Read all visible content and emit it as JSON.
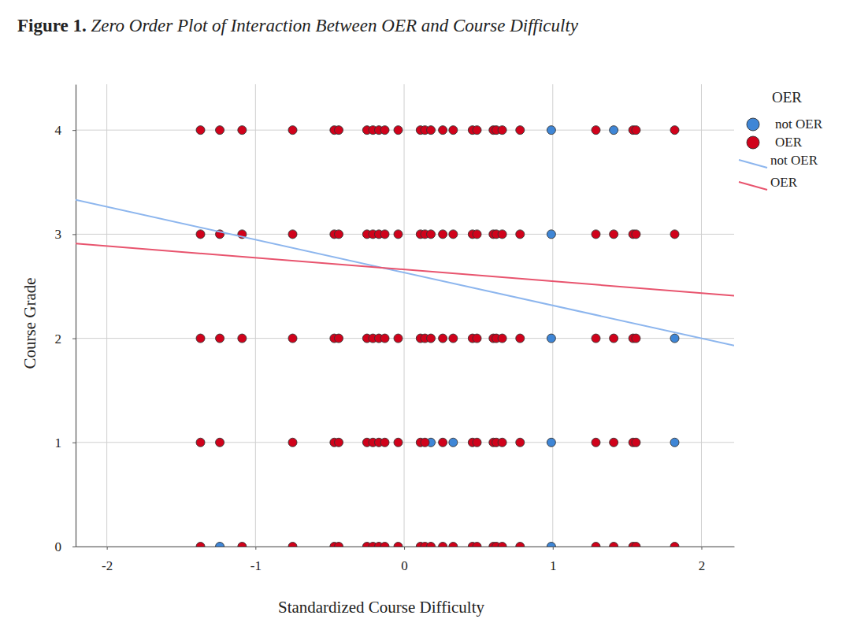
{
  "chart_data": {
    "type": "scatter",
    "title": "Figure 1. Zero Order Plot of Interaction Between OER and Course Difficulty",
    "x_label": "Standardized Course Difficulty",
    "y_label": "Course Grade",
    "legend_title": "OER",
    "legend": "right",
    "grid": true,
    "xlim": [
      -2.21,
      2.22
    ],
    "ylim": [
      0,
      4.44
    ],
    "xticks": [
      -2,
      -1,
      0,
      1,
      2
    ],
    "yticks": [
      0,
      1,
      2,
      3,
      4
    ],
    "series": [
      {
        "name": "not OER",
        "type": "scatter",
        "marker": "circle",
        "color": "#3f86d6",
        "x": [
          -1.24,
          0.99,
          0.18,
          0.33,
          0.99,
          1.82,
          0.99,
          1.82,
          0.99,
          0.99,
          1.41
        ],
        "values": [
          0,
          0,
          1,
          1,
          1,
          1,
          2,
          2,
          3,
          4,
          4
        ]
      },
      {
        "name": "OER",
        "type": "scatter",
        "marker": "circle",
        "color": "#d0021b",
        "x": [
          -1.37,
          -1.24,
          -1.09,
          -0.75,
          -0.47,
          -0.44,
          -0.25,
          -0.21,
          -0.17,
          -0.13,
          -0.04,
          0.11,
          0.14,
          0.18,
          0.26,
          0.33,
          0.46,
          0.49,
          0.6,
          0.62,
          0.66,
          0.78,
          1.29,
          1.54,
          1.56,
          1.82,
          -1.37,
          -1.24,
          -1.09,
          -0.75,
          -0.47,
          -0.44,
          -0.25,
          -0.21,
          -0.17,
          -0.13,
          -0.04,
          0.11,
          0.14,
          0.18,
          0.26,
          0.33,
          0.46,
          0.49,
          0.6,
          0.62,
          0.66,
          0.78,
          1.29,
          1.41,
          1.54,
          1.56,
          1.82,
          -1.37,
          -1.24,
          -1.09,
          -0.75,
          -0.47,
          -0.44,
          -0.25,
          -0.21,
          -0.17,
          -0.13,
          -0.04,
          0.11,
          0.14,
          0.18,
          0.26,
          0.33,
          0.46,
          0.49,
          0.6,
          0.62,
          0.66,
          0.78,
          1.29,
          1.41,
          1.54,
          1.56,
          -1.37,
          -1.24,
          -0.75,
          -0.47,
          -0.44,
          -0.25,
          -0.21,
          -0.17,
          -0.13,
          -0.04,
          0.11,
          0.14,
          0.26,
          0.46,
          0.49,
          0.6,
          0.62,
          0.66,
          0.78,
          1.29,
          1.41,
          1.54,
          1.56,
          -1.37,
          -1.09,
          -0.75,
          -0.47,
          -0.44,
          -0.25,
          -0.21,
          -0.17,
          -0.13,
          -0.04,
          0.11,
          0.14,
          0.18,
          0.26,
          0.33,
          0.46,
          0.49,
          0.6,
          0.62,
          0.66,
          0.78,
          1.29,
          1.41,
          1.54,
          1.56,
          1.82
        ],
        "values": [
          4,
          4,
          4,
          4,
          4,
          4,
          4,
          4,
          4,
          4,
          4,
          4,
          4,
          4,
          4,
          4,
          4,
          4,
          4,
          4,
          4,
          4,
          4,
          4,
          4,
          4,
          3,
          3,
          3,
          3,
          3,
          3,
          3,
          3,
          3,
          3,
          3,
          3,
          3,
          3,
          3,
          3,
          3,
          3,
          3,
          3,
          3,
          3,
          3,
          3,
          3,
          3,
          3,
          2,
          2,
          2,
          2,
          2,
          2,
          2,
          2,
          2,
          2,
          2,
          2,
          2,
          2,
          2,
          2,
          2,
          2,
          2,
          2,
          2,
          2,
          2,
          2,
          2,
          2,
          1,
          1,
          1,
          1,
          1,
          1,
          1,
          1,
          1,
          1,
          1,
          1,
          1,
          1,
          1,
          1,
          1,
          1,
          1,
          1,
          1,
          1,
          1,
          0,
          0,
          0,
          0,
          0,
          0,
          0,
          0,
          0,
          0,
          0,
          0,
          0,
          0,
          0,
          0,
          0,
          0,
          0,
          0,
          0,
          0,
          0,
          0,
          0,
          0
        ]
      },
      {
        "name": "not OER",
        "type": "line",
        "line_style": "solid",
        "color": "#8db6ee",
        "x": [
          -2.21,
          2.22
        ],
        "values": [
          3.33,
          1.93
        ]
      },
      {
        "name": "OER",
        "type": "line",
        "line_style": "solid",
        "color": "#e8546e",
        "x": [
          -2.21,
          2.22
        ],
        "values": [
          2.91,
          2.41
        ]
      }
    ]
  }
}
